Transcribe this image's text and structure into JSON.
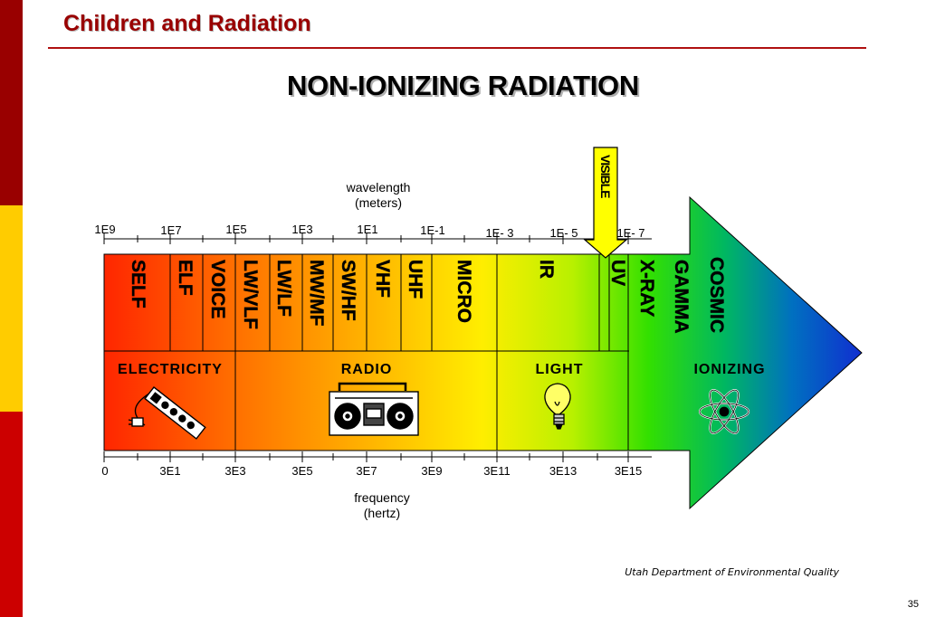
{
  "header": {
    "title": "Children and Radiation"
  },
  "slide": {
    "title": "NON-IONIZING RADIATION"
  },
  "colors": {
    "brand_dark_red": "#990000",
    "sidebar_red": "#cc0000",
    "sidebar_yellow": "#ffcc00",
    "title_rule": "#b01010",
    "visible_marker": "#ffff00"
  },
  "diagram": {
    "wavelength_label": [
      "wavelength",
      "(meters)"
    ],
    "frequency_label": [
      "frequency",
      "(hertz)"
    ],
    "wavelength_ticks": [
      "1E9",
      "1E7",
      "1E5",
      "1E3",
      "1E1",
      "1E-1",
      "1E- 3",
      "1E- 5",
      "1E- 7"
    ],
    "frequency_ticks": [
      "0",
      "3E1",
      "3E3",
      "3E5",
      "3E7",
      "3E9",
      "3E11",
      "3E13",
      "3E15"
    ],
    "bands": [
      "SELF",
      "ELF",
      "VOICE",
      "LW/VLF",
      "LW/LF",
      "MW/MF",
      "SW/HF",
      "VHF",
      "UHF",
      "MICRO",
      "IR",
      "UV",
      "X-RAY",
      "GAMMA",
      "COSMIC"
    ],
    "visible_marker": "VISIBLE",
    "categories": [
      "ELECTRICITY",
      "RADIO",
      "LIGHT",
      "IONIZING"
    ],
    "icons": [
      "power-strip-icon",
      "boombox-icon",
      "light-bulb-icon",
      "atom-icon"
    ]
  },
  "footer": {
    "source": "Utah Department of Environmental Quality",
    "page_number": "35"
  }
}
